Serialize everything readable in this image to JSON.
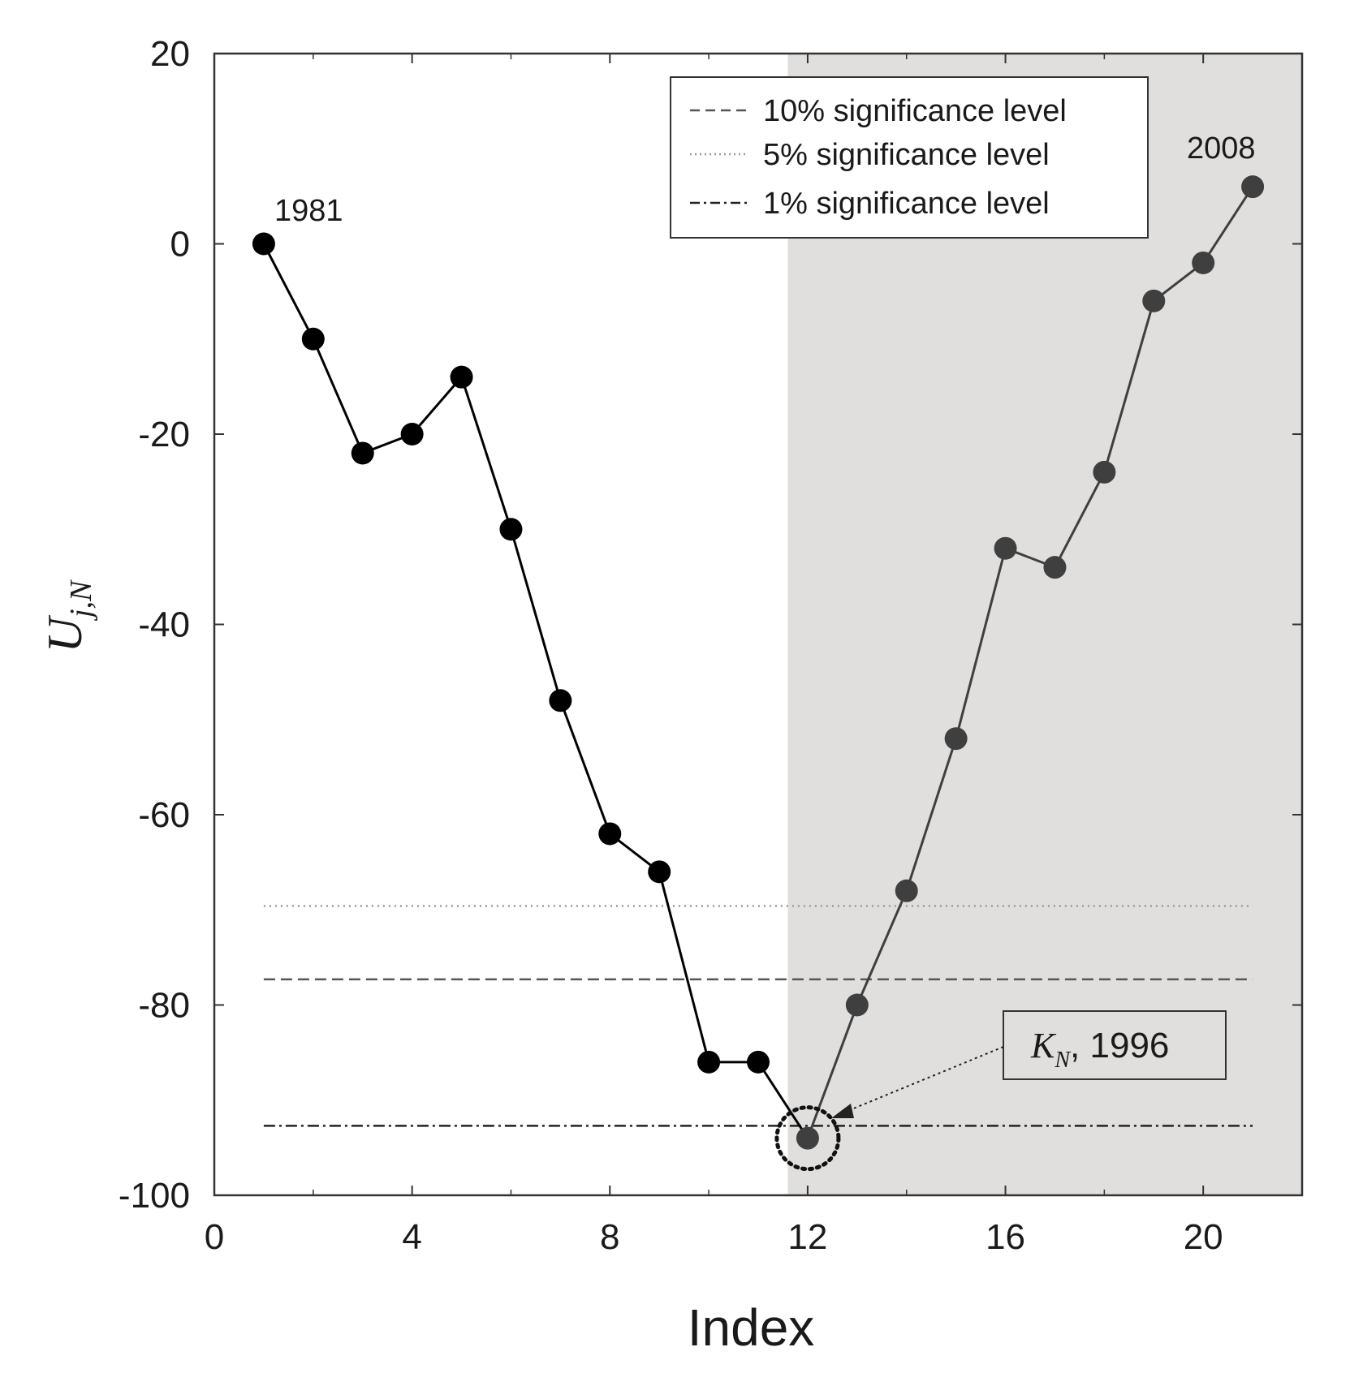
{
  "chart_data": {
    "type": "line",
    "xlabel": "Index",
    "ylabel": {
      "main": "U",
      "sub": "j,N"
    },
    "xlim": [
      0,
      22
    ],
    "ylim": [
      -100,
      20
    ],
    "xticks": [
      0,
      4,
      8,
      12,
      16,
      20
    ],
    "yticks": [
      20,
      0,
      -20,
      -40,
      -60,
      -80,
      -100
    ],
    "grid": false,
    "shaded_region": {
      "x_from": 11.6,
      "x_to": 22,
      "color": "#e0dfde"
    },
    "series": [
      {
        "color_before": "#000000",
        "color_after": "#3f3f3f",
        "x": [
          1,
          2,
          3,
          4,
          5,
          6,
          7,
          8,
          9,
          10,
          11,
          12,
          13,
          14,
          15,
          16,
          17,
          18,
          19,
          20,
          21
        ],
        "y": [
          0,
          -10,
          -22,
          -20,
          -14,
          -30,
          -48,
          -62,
          -66,
          -86,
          -86,
          -94,
          -80,
          -68,
          -52,
          -32,
          -34,
          -24,
          -6,
          -2,
          6
        ]
      }
    ],
    "thresholds": [
      {
        "label": "10% significance level",
        "y": -77.3,
        "style": "dashed",
        "color": "#555555"
      },
      {
        "label": "5% significance level",
        "y": -69.6,
        "style": "dotted",
        "color": "#999999"
      },
      {
        "label": "1% significance level",
        "y": -92.7,
        "style": "dashdot",
        "color": "#222222"
      }
    ],
    "legend": {
      "position": "top-right"
    },
    "annotations": {
      "start": {
        "text": "1981",
        "x": 1,
        "y": 0
      },
      "end": {
        "text": "2008",
        "x": 21,
        "y": 6
      },
      "change_point": {
        "symbol": "K",
        "sub": "N",
        "text": ", 1996",
        "x": 12,
        "y": -94
      }
    }
  }
}
